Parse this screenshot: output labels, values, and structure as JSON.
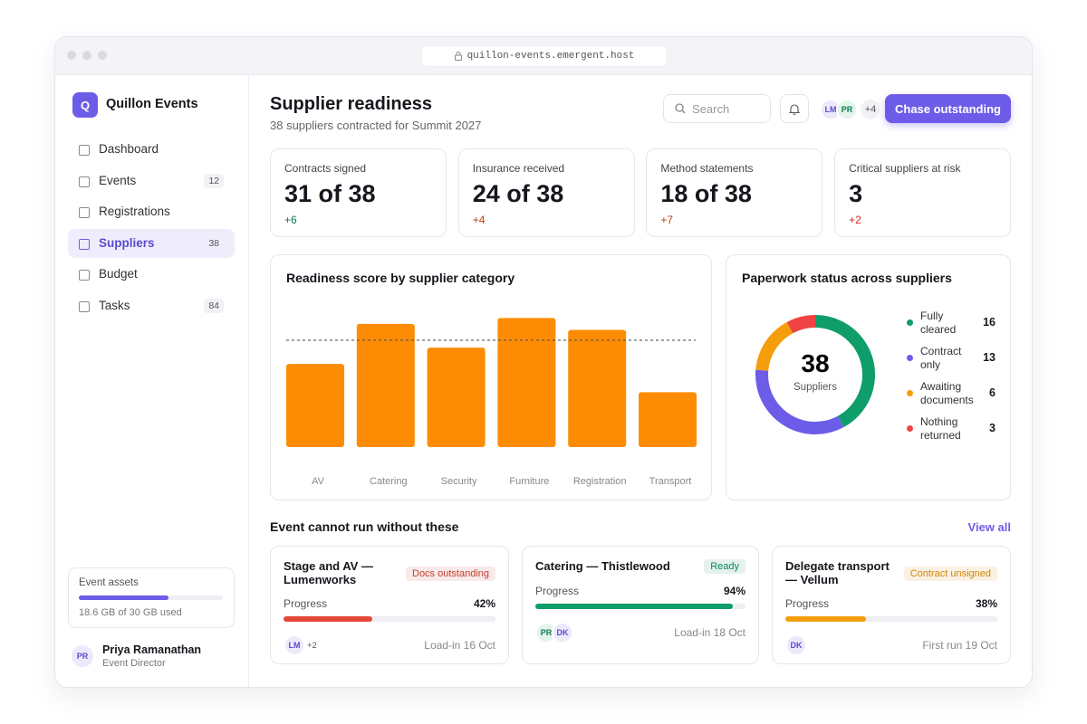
{
  "browser": {
    "url": "quillon-events.emergent.host"
  },
  "sidebar": {
    "brand_initial": "Q",
    "brand": "Quillon Events",
    "nav": [
      {
        "label": "Dashboard"
      },
      {
        "label": "Events",
        "count": 12
      },
      {
        "label": "Registrations"
      },
      {
        "label": "Suppliers",
        "count": 38
      },
      {
        "label": "Budget"
      },
      {
        "label": "Tasks",
        "count": 84
      }
    ],
    "assets": {
      "title": "Event assets",
      "used": 18.6,
      "total": 30,
      "label": "18.6 GB of 30 GB used"
    },
    "user": {
      "initials": "PR",
      "name": "Priya Ramanathan",
      "role": "Event Director"
    }
  },
  "header": {
    "title": "Supplier readiness",
    "subtitle": "38 suppliers contracted for Summit 2027",
    "search_placeholder": "Search",
    "avatars": [
      "LM",
      "PR"
    ],
    "avatar_more": "+4",
    "button": "Chase outstanding"
  },
  "kpis": [
    {
      "label": "Contracts signed",
      "value": "31 of 38",
      "delta": "+6",
      "color": "#0f7a52"
    },
    {
      "label": "Insurance received",
      "value": "24 of 38",
      "delta": "+4",
      "color": "#c2410c"
    },
    {
      "label": "Method statements",
      "value": "18 of 38",
      "delta": "+7",
      "color": "#c2410c"
    },
    {
      "label": "Critical suppliers at risk",
      "value": "3",
      "delta": "+2",
      "color": "#dc2626"
    }
  ],
  "chart_data": [
    {
      "type": "bar",
      "title": "Readiness score by supplier category",
      "categories": [
        "AV",
        "Catering",
        "Security",
        "Furniture",
        "Registration",
        "Transport"
      ],
      "values": [
        56,
        83,
        67,
        87,
        79,
        37
      ],
      "target": 72,
      "ylim": [
        0,
        100
      ],
      "color": "#fd8c04"
    },
    {
      "type": "pie",
      "title": "Paperwork status across suppliers",
      "categories": [
        "Fully cleared",
        "Contract only",
        "Awaiting documents",
        "Nothing returned"
      ],
      "values": [
        16,
        13,
        6,
        3
      ],
      "colors": [
        "#0f9d6a",
        "#6c5ce7",
        "#f59e0b",
        "#ef4444"
      ],
      "center_value": 38,
      "center_label": "Suppliers"
    }
  ],
  "critical": {
    "title": "Event cannot run without these",
    "link": "View all",
    "items": [
      {
        "title": "Stage and AV — Lumenworks",
        "status": "Docs outstanding",
        "progress_title": "Progress",
        "progress": 42,
        "progress_label": "42%",
        "color": "#e5483b",
        "avatars": [
          "LM"
        ],
        "avatar_more": "+2",
        "note": "Load-in 16 Oct"
      },
      {
        "title": "Catering — Thistlewood",
        "status": "Ready",
        "progress_title": "Progress",
        "progress": 94,
        "progress_label": "94%",
        "color": "#0f9d6a",
        "avatars": [
          "PR",
          "DK"
        ],
        "note": "Load-in 18 Oct"
      },
      {
        "title": "Delegate transport — Vellum",
        "status": "Contract unsigned",
        "progress_title": "Progress",
        "progress": 38,
        "progress_label": "38%",
        "color": "#f59e0b",
        "avatars": [
          "DK"
        ],
        "note": "First run 19 Oct"
      }
    ]
  }
}
